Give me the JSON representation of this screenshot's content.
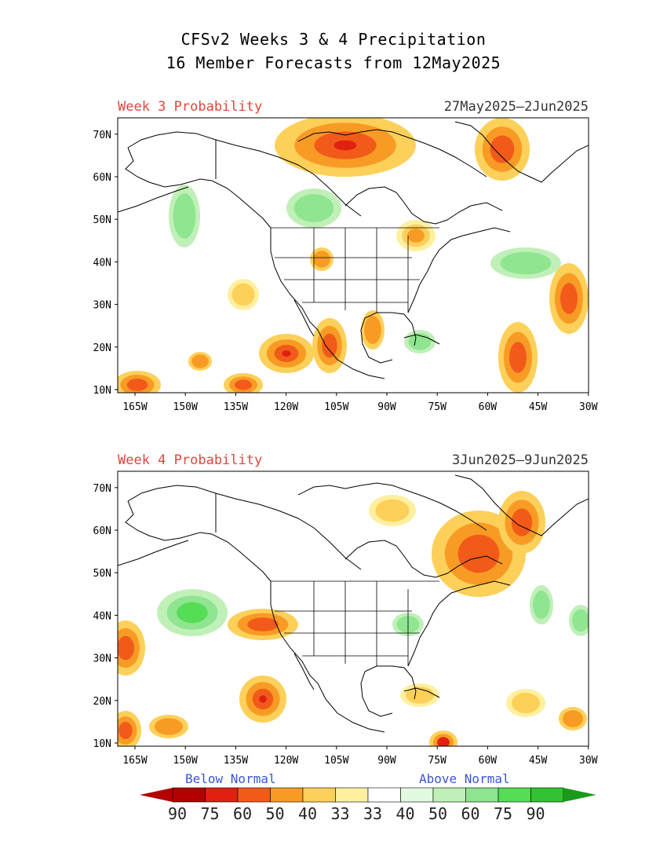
{
  "title_line1": "CFSv2 Weeks 3 & 4 Precipitation",
  "title_line2": "16 Member Forecasts from 12May2025",
  "panels": [
    {
      "label": "Week 3 Probability",
      "dates": "27May2025—2Jun2025"
    },
    {
      "label": "Week 4 Probability",
      "dates": "3Jun2025—9Jun2025"
    }
  ],
  "lat_ticks": [
    "10N",
    "20N",
    "30N",
    "40N",
    "50N",
    "60N",
    "70N"
  ],
  "lon_ticks": [
    "165W",
    "150W",
    "135W",
    "120W",
    "105W",
    "90W",
    "75W",
    "60W",
    "45W",
    "30W"
  ],
  "legend": {
    "below_label": "Below Normal",
    "above_label": "Above Normal",
    "numbers": [
      "90",
      "75",
      "60",
      "50",
      "40",
      "33",
      "33",
      "40",
      "50",
      "60",
      "75",
      "90"
    ],
    "colors": [
      "#b30000",
      "#e02010",
      "#f25a1a",
      "#f89b24",
      "#fdd05a",
      "#fff0a0",
      "#ffffff",
      "#e2fbe0",
      "#c0f0b8",
      "#90e590",
      "#55dd55",
      "#33c233",
      "#1a9a1a"
    ]
  }
}
